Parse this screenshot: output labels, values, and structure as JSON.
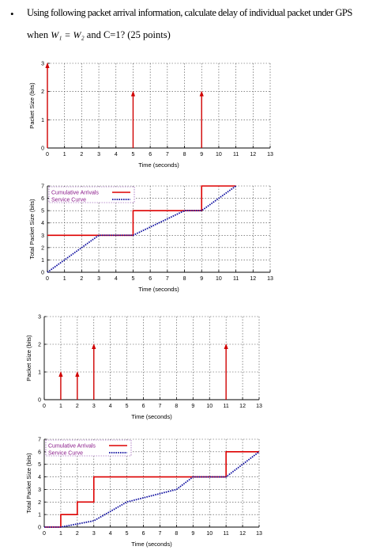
{
  "question": {
    "bullet": "•",
    "line1": "Using following packet arrival information, calculate delay of individual packet under GPS",
    "line2_prefix": "when",
    "formula": "W₁ = W₂",
    "line2_suffix": "and C=1? (25 points)"
  },
  "chart_data": [
    {
      "type": "bar",
      "title": "",
      "xlabel": "Time (seconds)",
      "ylabel": "Packet Size (bits)",
      "xlim": [
        0,
        13
      ],
      "ylim": [
        0,
        3
      ],
      "xticks": [
        0,
        1,
        2,
        3,
        4,
        5,
        6,
        7,
        8,
        9,
        10,
        11,
        12,
        13
      ],
      "yticks": [
        0,
        1,
        2,
        3
      ],
      "grid": true,
      "arrivals": [
        {
          "x": 0,
          "value": 3
        },
        {
          "x": 5,
          "value": 2
        },
        {
          "x": 9,
          "value": 2
        }
      ]
    },
    {
      "type": "line",
      "title": "",
      "xlabel": "Time (seconds)",
      "ylabel": "Total Packet Size (bits)",
      "xlim": [
        0,
        13
      ],
      "ylim": [
        0,
        7
      ],
      "xticks": [
        0,
        1,
        2,
        3,
        4,
        5,
        6,
        7,
        8,
        9,
        10,
        11,
        12,
        13
      ],
      "yticks": [
        0,
        1,
        2,
        3,
        4,
        5,
        6,
        7
      ],
      "grid": true,
      "legend_position": "top-left",
      "series": [
        {
          "name": "Cumulative Arrivals",
          "style": "solid",
          "color": "#dd0000",
          "points": [
            [
              0,
              3
            ],
            [
              4,
              3
            ],
            [
              5,
              3
            ],
            [
              5,
              5
            ],
            [
              9,
              5
            ],
            [
              9,
              7
            ],
            [
              11,
              7
            ]
          ]
        },
        {
          "name": "Service Curve",
          "style": "dotted",
          "color": "#1010a0",
          "points": [
            [
              0,
              0
            ],
            [
              3,
              3
            ],
            [
              4,
              3
            ],
            [
              5,
              3
            ],
            [
              8,
              5
            ],
            [
              9,
              5
            ],
            [
              11,
              7
            ]
          ]
        }
      ]
    },
    {
      "type": "bar",
      "title": "",
      "xlabel": "Time (seconds)",
      "ylabel": "Packet Size (bits)",
      "xlim": [
        0,
        13
      ],
      "ylim": [
        0,
        3
      ],
      "xticks": [
        0,
        1,
        2,
        3,
        4,
        5,
        6,
        7,
        8,
        9,
        10,
        11,
        12,
        13
      ],
      "yticks": [
        0,
        1,
        2,
        3
      ],
      "grid": true,
      "arrivals": [
        {
          "x": 1,
          "value": 1
        },
        {
          "x": 2,
          "value": 1
        },
        {
          "x": 3,
          "value": 2
        },
        {
          "x": 11,
          "value": 2
        }
      ]
    },
    {
      "type": "line",
      "title": "",
      "xlabel": "Time (seconds)",
      "ylabel": "Total Packet Size (bits)",
      "xlim": [
        0,
        13
      ],
      "ylim": [
        0,
        7
      ],
      "xticks": [
        0,
        1,
        2,
        3,
        4,
        5,
        6,
        7,
        8,
        9,
        10,
        11,
        12,
        13
      ],
      "yticks": [
        0,
        1,
        2,
        3,
        4,
        5,
        6,
        7
      ],
      "grid": true,
      "legend_position": "top-left",
      "series": [
        {
          "name": "Cumulative Arrivals",
          "style": "solid",
          "color": "#dd0000",
          "points": [
            [
              0,
              0
            ],
            [
              1,
              0
            ],
            [
              1,
              1
            ],
            [
              2,
              1
            ],
            [
              2,
              2
            ],
            [
              3,
              2
            ],
            [
              3,
              4
            ],
            [
              11,
              4
            ],
            [
              11,
              6
            ],
            [
              13,
              6
            ]
          ]
        },
        {
          "name": "Service Curve",
          "style": "dotted",
          "color": "#1010a0",
          "points": [
            [
              0,
              0
            ],
            [
              1,
              0
            ],
            [
              3,
              0.5
            ],
            [
              5,
              2
            ],
            [
              8,
              3
            ],
            [
              9,
              4
            ],
            [
              11,
              4
            ],
            [
              13,
              6
            ]
          ]
        }
      ]
    }
  ]
}
